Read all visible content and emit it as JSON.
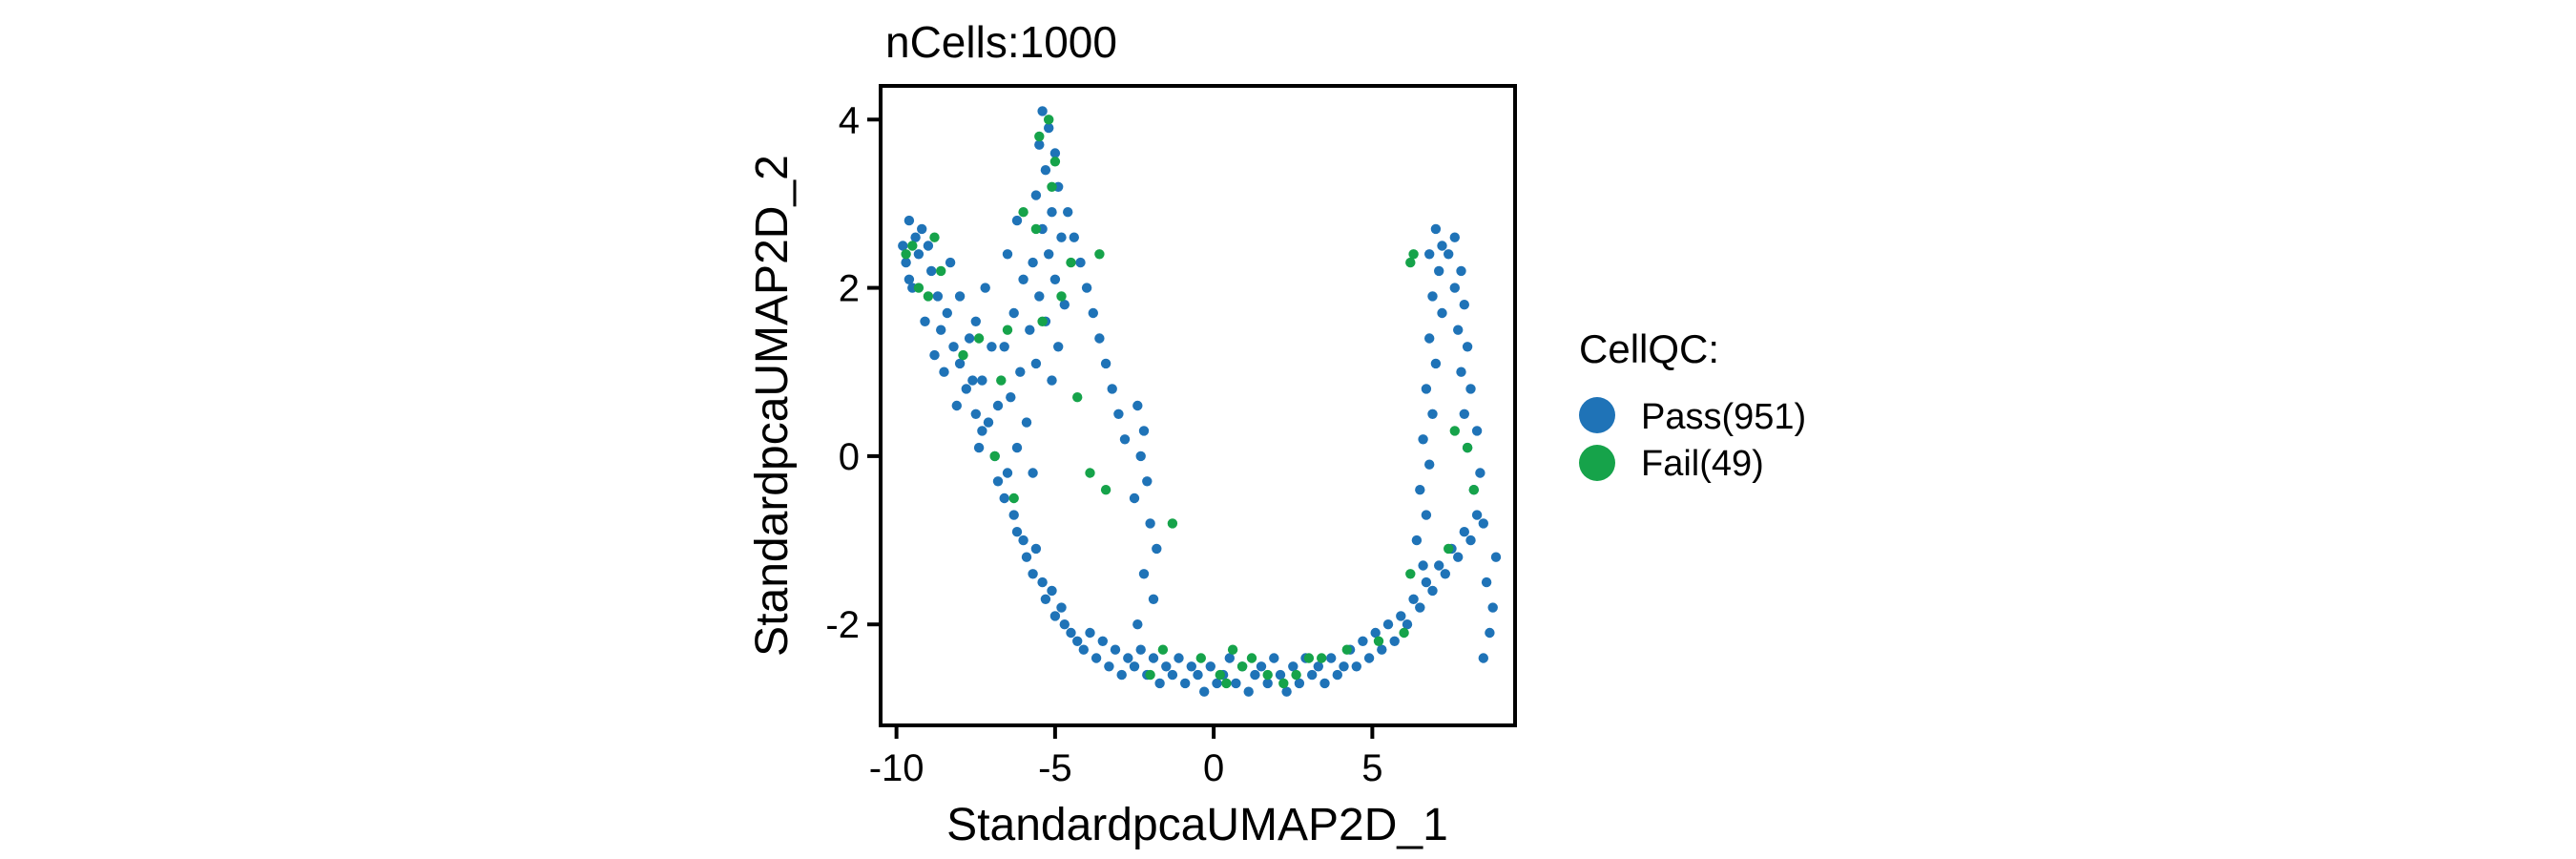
{
  "chart_data": {
    "type": "scatter",
    "title": "nCells:1000",
    "xlabel": "StandardpcaUMAP2D_1",
    "ylabel": "StandardpcaUMAP2D_2",
    "xlim": [
      -10.5,
      9.5
    ],
    "ylim": [
      -3.2,
      4.4
    ],
    "x_ticks": [
      -10,
      -5,
      0,
      5
    ],
    "y_ticks": [
      -2,
      0,
      2,
      4
    ],
    "x_tick_labels": [
      "-10",
      "-5",
      "0",
      "5"
    ],
    "y_tick_labels": [
      "-2",
      "0",
      "2",
      "4"
    ],
    "grid": false,
    "legend": {
      "title": "CellQC:",
      "position": "right",
      "entries": [
        {
          "label": "Pass(951)",
          "color": "#1f73b7"
        },
        {
          "label": "Fail(49)",
          "color": "#16a34a"
        }
      ]
    },
    "series": [
      {
        "name": "Pass(951)",
        "color": "#1f73b7",
        "count": 951,
        "points": [
          [
            -9.6,
            2.8
          ],
          [
            -9.4,
            2.6
          ],
          [
            -9.7,
            2.3
          ],
          [
            -9.2,
            2.7
          ],
          [
            -9.0,
            2.5
          ],
          [
            -9.5,
            2.0
          ],
          [
            -8.9,
            2.2
          ],
          [
            -9.3,
            2.4
          ],
          [
            -8.7,
            1.9
          ],
          [
            -9.1,
            1.6
          ],
          [
            -8.6,
            1.5
          ],
          [
            -8.8,
            1.2
          ],
          [
            -8.4,
            1.7
          ],
          [
            -8.2,
            1.3
          ],
          [
            -8.5,
            1.0
          ],
          [
            -8.0,
            1.1
          ],
          [
            -7.8,
            0.8
          ],
          [
            -8.1,
            0.6
          ],
          [
            -7.6,
            0.9
          ],
          [
            -7.5,
            0.5
          ],
          [
            -7.3,
            0.3
          ],
          [
            -7.4,
            0.1
          ],
          [
            -7.1,
            0.4
          ],
          [
            -6.9,
            0.0
          ],
          [
            -6.8,
            -0.3
          ],
          [
            -6.6,
            -0.5
          ],
          [
            -6.5,
            -0.2
          ],
          [
            -6.3,
            -0.7
          ],
          [
            -6.2,
            -0.9
          ],
          [
            -6.0,
            -1.0
          ],
          [
            -5.9,
            -1.2
          ],
          [
            -5.7,
            -1.4
          ],
          [
            -5.6,
            -1.1
          ],
          [
            -5.4,
            -1.5
          ],
          [
            -5.3,
            -1.7
          ],
          [
            -5.1,
            -1.6
          ],
          [
            -5.0,
            -1.9
          ],
          [
            -4.8,
            -1.8
          ],
          [
            -4.7,
            -2.0
          ],
          [
            -4.5,
            -2.1
          ],
          [
            -4.3,
            -2.2
          ],
          [
            -4.1,
            -2.3
          ],
          [
            -3.9,
            -2.1
          ],
          [
            -3.7,
            -2.4
          ],
          [
            -3.5,
            -2.2
          ],
          [
            -3.3,
            -2.5
          ],
          [
            -3.1,
            -2.3
          ],
          [
            -2.9,
            -2.6
          ],
          [
            -2.7,
            -2.4
          ],
          [
            -2.5,
            -2.5
          ],
          [
            -2.3,
            -2.3
          ],
          [
            -2.1,
            -2.6
          ],
          [
            -1.9,
            -2.4
          ],
          [
            -1.7,
            -2.7
          ],
          [
            -1.5,
            -2.5
          ],
          [
            -1.3,
            -2.6
          ],
          [
            -1.1,
            -2.4
          ],
          [
            -0.9,
            -2.7
          ],
          [
            -0.7,
            -2.5
          ],
          [
            -0.5,
            -2.6
          ],
          [
            -0.3,
            -2.8
          ],
          [
            -0.1,
            -2.5
          ],
          [
            0.1,
            -2.7
          ],
          [
            0.3,
            -2.6
          ],
          [
            0.5,
            -2.4
          ],
          [
            0.7,
            -2.7
          ],
          [
            0.9,
            -2.5
          ],
          [
            1.1,
            -2.8
          ],
          [
            1.3,
            -2.6
          ],
          [
            1.5,
            -2.5
          ],
          [
            1.7,
            -2.7
          ],
          [
            1.9,
            -2.4
          ],
          [
            2.1,
            -2.6
          ],
          [
            2.3,
            -2.8
          ],
          [
            2.5,
            -2.5
          ],
          [
            2.7,
            -2.7
          ],
          [
            2.9,
            -2.4
          ],
          [
            3.1,
            -2.6
          ],
          [
            3.3,
            -2.5
          ],
          [
            3.5,
            -2.7
          ],
          [
            3.7,
            -2.4
          ],
          [
            3.9,
            -2.6
          ],
          [
            4.1,
            -2.5
          ],
          [
            4.3,
            -2.3
          ],
          [
            4.5,
            -2.5
          ],
          [
            4.7,
            -2.2
          ],
          [
            4.9,
            -2.4
          ],
          [
            5.1,
            -2.1
          ],
          [
            5.3,
            -2.3
          ],
          [
            5.5,
            -2.0
          ],
          [
            5.7,
            -2.2
          ],
          [
            5.9,
            -1.9
          ],
          [
            6.1,
            -2.0
          ],
          [
            6.3,
            -1.7
          ],
          [
            6.5,
            -1.8
          ],
          [
            6.7,
            -1.5
          ],
          [
            6.9,
            -1.6
          ],
          [
            7.1,
            -1.3
          ],
          [
            7.3,
            -1.4
          ],
          [
            7.5,
            -1.1
          ],
          [
            7.7,
            -1.2
          ],
          [
            7.9,
            -0.9
          ],
          [
            8.1,
            -1.0
          ],
          [
            8.3,
            -0.7
          ],
          [
            8.5,
            -0.8
          ],
          [
            8.2,
            -0.4
          ],
          [
            8.4,
            -0.2
          ],
          [
            8.0,
            0.1
          ],
          [
            8.3,
            0.3
          ],
          [
            7.9,
            0.5
          ],
          [
            8.1,
            0.8
          ],
          [
            7.8,
            1.0
          ],
          [
            8.0,
            1.3
          ],
          [
            7.7,
            1.5
          ],
          [
            7.9,
            1.8
          ],
          [
            7.6,
            2.0
          ],
          [
            7.8,
            2.2
          ],
          [
            7.4,
            2.4
          ],
          [
            7.6,
            2.6
          ],
          [
            7.2,
            2.5
          ],
          [
            7.0,
            2.7
          ],
          [
            6.8,
            2.4
          ],
          [
            7.1,
            2.2
          ],
          [
            6.9,
            1.9
          ],
          [
            7.2,
            1.7
          ],
          [
            6.8,
            1.4
          ],
          [
            7.0,
            1.1
          ],
          [
            6.7,
            0.8
          ],
          [
            6.9,
            0.5
          ],
          [
            6.6,
            0.2
          ],
          [
            6.8,
            -0.1
          ],
          [
            6.5,
            -0.4
          ],
          [
            6.7,
            -0.7
          ],
          [
            6.4,
            -1.0
          ],
          [
            6.6,
            -1.3
          ],
          [
            8.6,
            -1.5
          ],
          [
            8.8,
            -1.8
          ],
          [
            8.7,
            -2.1
          ],
          [
            8.5,
            -2.4
          ],
          [
            8.9,
            -1.2
          ],
          [
            -5.4,
            4.1
          ],
          [
            -5.2,
            3.9
          ],
          [
            -5.5,
            3.7
          ],
          [
            -5.0,
            3.6
          ],
          [
            -5.3,
            3.4
          ],
          [
            -4.9,
            3.2
          ],
          [
            -5.6,
            3.1
          ],
          [
            -5.1,
            2.9
          ],
          [
            -5.4,
            2.7
          ],
          [
            -4.8,
            2.6
          ],
          [
            -5.2,
            2.4
          ],
          [
            -5.7,
            2.3
          ],
          [
            -5.0,
            2.1
          ],
          [
            -5.5,
            1.9
          ],
          [
            -4.7,
            1.8
          ],
          [
            -5.3,
            1.6
          ],
          [
            -5.8,
            1.5
          ],
          [
            -4.9,
            1.3
          ],
          [
            -5.6,
            1.1
          ],
          [
            -5.1,
            0.9
          ],
          [
            -4.6,
            2.9
          ],
          [
            -4.4,
            2.6
          ],
          [
            -4.2,
            2.3
          ],
          [
            -4.0,
            2.0
          ],
          [
            -3.8,
            1.7
          ],
          [
            -3.6,
            1.4
          ],
          [
            -3.4,
            1.1
          ],
          [
            -3.2,
            0.8
          ],
          [
            -3.0,
            0.5
          ],
          [
            -2.8,
            0.2
          ],
          [
            -2.4,
            0.6
          ],
          [
            -2.2,
            0.3
          ],
          [
            -2.3,
            0.0
          ],
          [
            -2.1,
            -0.3
          ],
          [
            -2.5,
            -0.5
          ],
          [
            -2.0,
            -0.8
          ],
          [
            -1.8,
            -1.1
          ],
          [
            -2.2,
            -1.4
          ],
          [
            -1.9,
            -1.7
          ],
          [
            -2.4,
            -2.0
          ],
          [
            -6.2,
            2.8
          ],
          [
            -6.5,
            2.4
          ],
          [
            -6.0,
            2.1
          ],
          [
            -6.3,
            1.7
          ],
          [
            -6.6,
            1.3
          ],
          [
            -6.1,
            1.0
          ],
          [
            -6.4,
            0.7
          ],
          [
            -5.9,
            0.4
          ],
          [
            -6.2,
            0.1
          ],
          [
            -5.7,
            -0.2
          ],
          [
            -7.2,
            2.0
          ],
          [
            -7.5,
            1.6
          ],
          [
            -7.0,
            1.3
          ],
          [
            -7.3,
            0.9
          ],
          [
            -6.8,
            0.6
          ],
          [
            -9.8,
            2.5
          ],
          [
            -9.6,
            2.1
          ],
          [
            -8.3,
            2.3
          ],
          [
            -8.0,
            1.9
          ],
          [
            -7.7,
            1.4
          ]
        ]
      },
      {
        "name": "Fail(49)",
        "color": "#16a34a",
        "count": 49,
        "points": [
          [
            -9.7,
            2.4
          ],
          [
            -9.5,
            2.5
          ],
          [
            -9.3,
            2.0
          ],
          [
            -8.8,
            2.6
          ],
          [
            -5.2,
            4.0
          ],
          [
            -5.5,
            3.8
          ],
          [
            -5.1,
            3.2
          ],
          [
            -6.0,
            2.9
          ],
          [
            -5.6,
            2.7
          ],
          [
            -3.6,
            2.4
          ],
          [
            -4.5,
            2.3
          ],
          [
            -5.4,
            1.6
          ],
          [
            -6.5,
            1.5
          ],
          [
            -7.4,
            1.4
          ],
          [
            -4.3,
            0.7
          ],
          [
            -6.9,
            0.0
          ],
          [
            -6.3,
            -0.5
          ],
          [
            -3.4,
            -0.4
          ],
          [
            -1.3,
            -0.8
          ],
          [
            -2.0,
            -2.6
          ],
          [
            -0.4,
            -2.4
          ],
          [
            0.2,
            -2.6
          ],
          [
            0.6,
            -2.3
          ],
          [
            0.9,
            -2.5
          ],
          [
            1.2,
            -2.4
          ],
          [
            2.2,
            -2.7
          ],
          [
            2.6,
            -2.6
          ],
          [
            3.0,
            -2.4
          ],
          [
            4.2,
            -2.3
          ],
          [
            6.3,
            2.4
          ],
          [
            6.2,
            2.3
          ],
          [
            8.0,
            0.1
          ],
          [
            7.6,
            0.3
          ],
          [
            6.2,
            -1.4
          ],
          [
            6.0,
            -2.1
          ],
          [
            -9.0,
            1.9
          ],
          [
            -8.6,
            2.2
          ],
          [
            -5.0,
            3.5
          ],
          [
            -4.8,
            1.9
          ],
          [
            -6.7,
            0.9
          ],
          [
            -3.9,
            -0.2
          ],
          [
            -1.6,
            -2.3
          ],
          [
            0.4,
            -2.7
          ],
          [
            1.7,
            -2.6
          ],
          [
            3.4,
            -2.4
          ],
          [
            5.2,
            -2.2
          ],
          [
            7.4,
            -1.1
          ],
          [
            8.2,
            -0.4
          ],
          [
            -7.9,
            1.2
          ]
        ]
      }
    ]
  }
}
